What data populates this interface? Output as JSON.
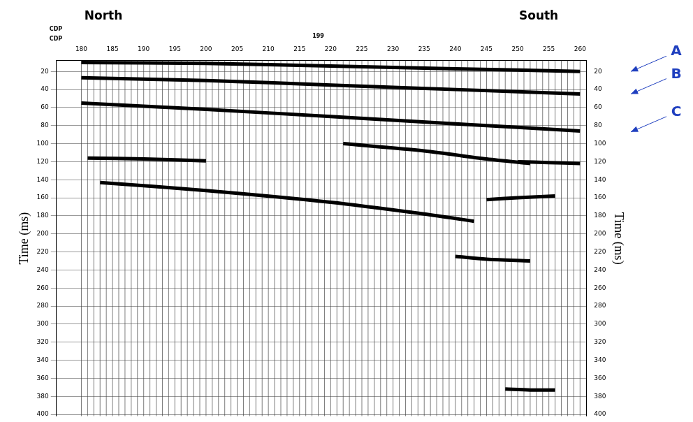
{
  "chart_data": {
    "type": "line",
    "texts": {
      "north": "North",
      "south": "South",
      "cdp": [
        "CDP",
        "CDP"
      ],
      "mid": {
        "text": "199",
        "x": 218
      }
    },
    "ylabel": "Time (ms)",
    "y2label": "Time (ms)",
    "xlim": [
      176,
      261
    ],
    "xticks": [
      180,
      185,
      190,
      195,
      200,
      205,
      210,
      215,
      220,
      225,
      230,
      235,
      240,
      245,
      250,
      255,
      260
    ],
    "ylim": [
      8,
      402
    ],
    "yticks": [
      20,
      40,
      60,
      80,
      100,
      120,
      140,
      160,
      180,
      200,
      220,
      240,
      260,
      280,
      300,
      320,
      340,
      360,
      380,
      400
    ],
    "y2lim": [
      8,
      402
    ],
    "y2ticks": [
      20,
      40,
      60,
      80,
      100,
      120,
      140,
      160,
      180,
      200,
      220,
      240,
      260,
      280,
      300,
      320,
      340,
      360,
      380,
      400
    ],
    "grid": true,
    "traces": [
      180,
      181,
      182,
      183,
      184,
      185,
      186,
      187,
      188,
      189,
      190,
      191,
      192,
      193,
      194,
      195,
      196,
      197,
      198,
      199,
      200,
      201,
      202,
      203,
      204,
      205,
      206,
      207,
      208,
      209,
      210,
      211,
      212,
      213,
      214,
      215,
      216,
      217,
      218,
      219,
      220,
      221,
      222,
      223,
      224,
      225,
      226,
      227,
      228,
      229,
      230,
      231,
      232,
      233,
      234,
      235,
      236,
      237,
      238,
      239,
      240,
      241,
      242,
      243,
      244,
      245,
      246,
      247,
      248,
      249,
      250,
      251,
      252,
      253,
      254,
      255,
      256,
      257,
      258,
      259,
      260
    ],
    "series": [
      {
        "color": "#000000",
        "x": [
          180,
          200,
          220,
          240,
          260
        ],
        "values": [
          10,
          11,
          14,
          17,
          20
        ]
      },
      {
        "color": "#000000",
        "x": [
          180,
          200,
          220,
          240,
          260
        ],
        "values": [
          27,
          30,
          35,
          40,
          45
        ]
      },
      {
        "color": "#000000",
        "x": [
          180,
          200,
          220,
          240,
          260
        ],
        "values": [
          55,
          62,
          70,
          78,
          86
        ]
      },
      {
        "color": "#000000",
        "x": [
          181,
          190,
          200
        ],
        "values": [
          116,
          117,
          119
        ]
      },
      {
        "color": "#000000",
        "x": [
          183,
          200,
          220,
          235,
          243
        ],
        "values": [
          143,
          152,
          165,
          178,
          186
        ]
      },
      {
        "color": "#000000",
        "x": [
          222,
          235,
          245,
          252
        ],
        "values": [
          100,
          108,
          117,
          122
        ]
      },
      {
        "color": "#000000",
        "x": [
          250,
          255,
          260
        ],
        "values": [
          120,
          121,
          122
        ]
      },
      {
        "color": "#000000",
        "x": [
          245,
          250,
          256
        ],
        "values": [
          162,
          160,
          158
        ]
      },
      {
        "color": "#000000",
        "x": [
          240,
          245,
          252
        ],
        "values": [
          225,
          228,
          230
        ]
      },
      {
        "color": "#000000",
        "x": [
          248,
          252,
          256
        ],
        "values": [
          372,
          373,
          373
        ]
      }
    ],
    "annotations": [
      {
        "text": "A",
        "y": 20,
        "color": "#1f3fbf"
      },
      {
        "text": "B",
        "y": 45,
        "color": "#1f3fbf"
      },
      {
        "text": "C",
        "y": 87,
        "color": "#1f3fbf"
      }
    ]
  }
}
